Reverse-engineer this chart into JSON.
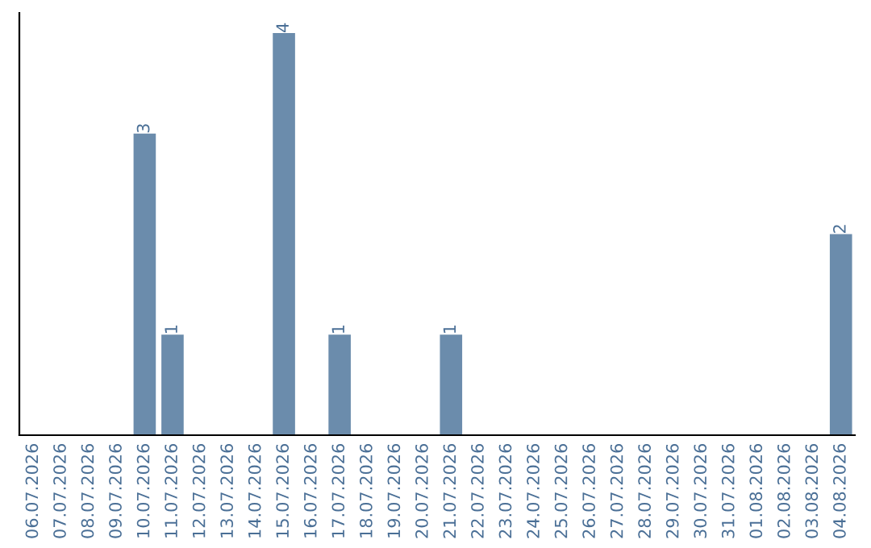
{
  "chart_data": {
    "type": "bar",
    "categories": [
      "06.07.2026",
      "07.07.2026",
      "08.07.2026",
      "09.07.2026",
      "10.07.2026",
      "11.07.2026",
      "12.07.2026",
      "13.07.2026",
      "14.07.2026",
      "15.07.2026",
      "16.07.2026",
      "17.07.2026",
      "18.07.2026",
      "19.07.2026",
      "20.07.2026",
      "21.07.2026",
      "22.07.2026",
      "23.07.2026",
      "24.07.2026",
      "25.07.2026",
      "26.07.2026",
      "27.07.2026",
      "28.07.2026",
      "29.07.2026",
      "30.07.2026",
      "31.07.2026",
      "01.08.2026",
      "02.08.2026",
      "03.08.2026",
      "04.08.2026"
    ],
    "values": [
      0,
      0,
      0,
      0,
      3,
      1,
      0,
      0,
      0,
      4,
      0,
      1,
      0,
      0,
      0,
      1,
      0,
      0,
      0,
      0,
      0,
      0,
      0,
      0,
      0,
      0,
      0,
      0,
      0,
      2
    ],
    "value_labels": [
      null,
      null,
      null,
      null,
      "3",
      "1",
      null,
      null,
      null,
      "4",
      null,
      "1",
      null,
      null,
      null,
      "1",
      null,
      null,
      null,
      null,
      null,
      null,
      null,
      null,
      null,
      null,
      null,
      null,
      null,
      "2"
    ],
    "color": "#6b8cac",
    "ylim": [
      0,
      4.2
    ],
    "tick_labels": "x",
    "grid": false,
    "legend": false
  }
}
